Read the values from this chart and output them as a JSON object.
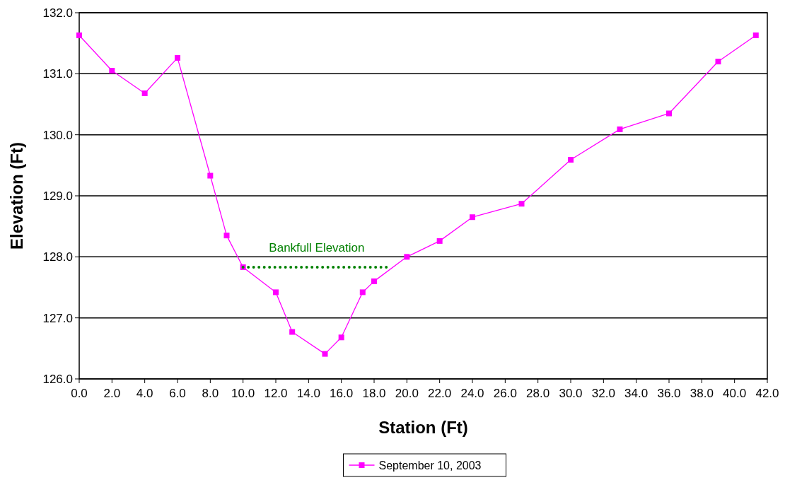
{
  "chart_data": {
    "type": "line",
    "xlabel": "Station (Ft)",
    "ylabel": "Elevation (Ft)",
    "xlim": [
      0,
      42
    ],
    "ylim": [
      126,
      132
    ],
    "xticks": [
      {
        "value": 0,
        "label": "0.0"
      },
      {
        "value": 2,
        "label": "2.0"
      },
      {
        "value": 4,
        "label": "4.0"
      },
      {
        "value": 6,
        "label": "6.0"
      },
      {
        "value": 8,
        "label": "8.0"
      },
      {
        "value": 10,
        "label": "10.0"
      },
      {
        "value": 12,
        "label": "12.0"
      },
      {
        "value": 14,
        "label": "14.0"
      },
      {
        "value": 16,
        "label": "16.0"
      },
      {
        "value": 18,
        "label": "18.0"
      },
      {
        "value": 20,
        "label": "20.0"
      },
      {
        "value": 22,
        "label": "22.0"
      },
      {
        "value": 24,
        "label": "24.0"
      },
      {
        "value": 26,
        "label": "26.0"
      },
      {
        "value": 28,
        "label": "28.0"
      },
      {
        "value": 30,
        "label": "30.0"
      },
      {
        "value": 32,
        "label": "32.0"
      },
      {
        "value": 34,
        "label": "34.0"
      },
      {
        "value": 36,
        "label": "36.0"
      },
      {
        "value": 38,
        "label": "38.0"
      },
      {
        "value": 40,
        "label": "40.0"
      },
      {
        "value": 42,
        "label": "42.0"
      }
    ],
    "yticks": [
      {
        "value": 126,
        "label": "126.0"
      },
      {
        "value": 127,
        "label": "127.0"
      },
      {
        "value": 128,
        "label": "128.0"
      },
      {
        "value": 129,
        "label": "129.0"
      },
      {
        "value": 130,
        "label": "130.0"
      },
      {
        "value": 131,
        "label": "131.0"
      },
      {
        "value": 132,
        "label": "132.0"
      }
    ],
    "grid": "y",
    "legend": "bottom",
    "marker": "square",
    "line_style": "solid",
    "series": [
      {
        "name": "September 10, 2003",
        "color": "#ff00ff",
        "x": [
          0,
          2,
          4,
          6,
          8,
          9,
          10,
          12,
          13,
          15,
          16,
          17.3,
          18,
          20,
          22,
          24,
          27,
          30,
          33,
          36,
          39,
          41.3
        ],
        "values": [
          131.63,
          131.05,
          130.68,
          131.26,
          129.33,
          128.35,
          127.83,
          127.42,
          126.77,
          126.41,
          126.68,
          127.42,
          127.6,
          128.0,
          128.26,
          128.65,
          128.87,
          129.59,
          130.09,
          130.35,
          131.2,
          131.63
        ]
      },
      {
        "type": "line",
        "color": "#008000",
        "line_style": "dotted",
        "marker": "none",
        "x": [
          10,
          19
        ],
        "values": [
          127.83,
          127.83
        ]
      }
    ],
    "annotations": [
      {
        "text": "Bankfull Elevation",
        "x": 14.5,
        "y": 127.83
      }
    ]
  }
}
